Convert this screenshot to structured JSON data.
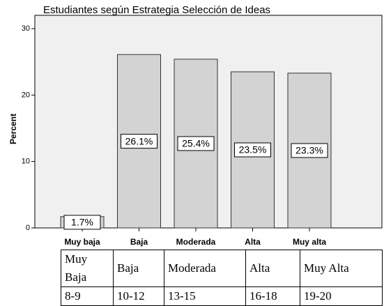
{
  "chart_data": {
    "type": "bar",
    "title": "Estudiantes según Estrategia Selección de Ideas",
    "y_label": "Percent",
    "categories": [
      "Muy baja",
      "Baja",
      "Moderada",
      "Alta",
      "Muy alta"
    ],
    "values": [
      1.7,
      26.1,
      25.4,
      23.5,
      23.3
    ],
    "value_labels": [
      "1.7%",
      "26.1%",
      "25.4%",
      "23.5%",
      "23.3%"
    ],
    "color": "#d3d3d3",
    "ylim": [
      0,
      32
    ],
    "yticks": [
      0,
      10,
      20,
      30
    ],
    "grid": false
  },
  "table": {
    "rows": [
      [
        "Muy Baja",
        "Baja",
        "Moderada",
        "Alta",
        "Muy Alta"
      ],
      [
        "8-9",
        "10-12",
        "13-15",
        "16-18",
        "19-20"
      ]
    ]
  }
}
